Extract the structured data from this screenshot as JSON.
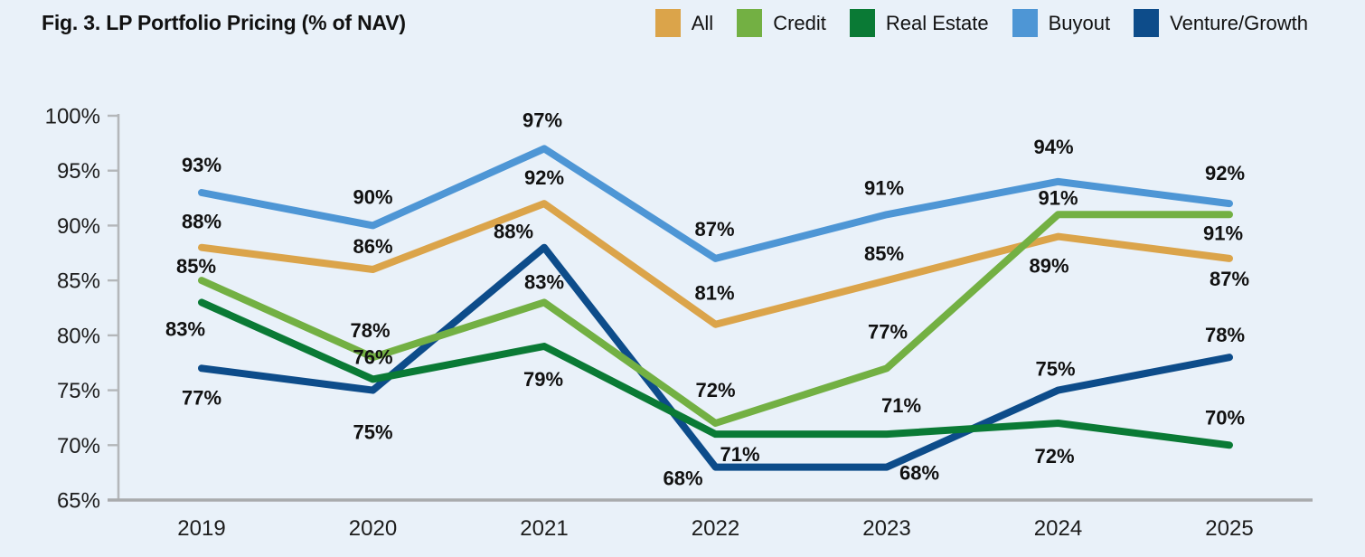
{
  "figure": {
    "title": "Fig. 3. LP Portfolio Pricing (% of NAV)"
  },
  "colors": {
    "background": "#e9f1f9",
    "axis_line": "#a9abad",
    "tick_line": "#b4b7ba",
    "axis_text": "#1c1c1c",
    "label_text": "#111111"
  },
  "chart_data": {
    "type": "line",
    "title": "Fig. 3. LP Portfolio Pricing (% of NAV)",
    "categories": [
      "2019",
      "2020",
      "2021",
      "2022",
      "2023",
      "2024",
      "2025"
    ],
    "xlabel": "",
    "ylabel": "",
    "ylim": [
      65,
      100
    ],
    "y_tick_step": 5,
    "y_ticks": [
      "100%",
      "95%",
      "90%",
      "85%",
      "80%",
      "75%",
      "70%",
      "65%"
    ],
    "grid": false,
    "legend_position": "top-right",
    "unit": "%",
    "series": [
      {
        "name": "All",
        "color": "#dba44a",
        "values": [
          88,
          86,
          92,
          81,
          85,
          89,
          87
        ],
        "label_offsets": [
          [
            0,
            -21
          ],
          [
            0,
            -18
          ],
          [
            0,
            -21
          ],
          [
            -1,
            -27
          ],
          [
            -3,
            -22
          ],
          [
            -10,
            40
          ],
          [
            0,
            30
          ]
        ]
      },
      {
        "name": "Credit",
        "color": "#73b043",
        "values": [
          85,
          78,
          83,
          72,
          77,
          91,
          91
        ],
        "label_offsets": [
          [
            -6,
            -8
          ],
          [
            -3,
            -22
          ],
          [
            0,
            -15
          ],
          [
            0,
            -29
          ],
          [
            1,
            -33
          ],
          [
            0,
            -11
          ],
          [
            -7,
            28
          ]
        ]
      },
      {
        "name": "Real Estate",
        "color": "#0a7a35",
        "values": [
          83,
          76,
          79,
          71,
          71,
          72,
          70
        ],
        "label_offsets": [
          [
            -18,
            37
          ],
          [
            0,
            -17
          ],
          [
            -1,
            44
          ],
          [
            27,
            30
          ],
          [
            16,
            -24
          ],
          [
            -4,
            44
          ],
          [
            -5,
            -23
          ]
        ]
      },
      {
        "name": "Buyout",
        "color": "#4e96d5",
        "values": [
          93,
          90,
          97,
          87,
          91,
          94,
          92
        ],
        "label_offsets": [
          [
            0,
            -23
          ],
          [
            0,
            -24
          ],
          [
            -2,
            -24
          ],
          [
            -1,
            -25
          ],
          [
            -3,
            -22
          ],
          [
            -5,
            -31
          ],
          [
            -5,
            -26
          ]
        ]
      },
      {
        "name": "Venture/Growth",
        "color": "#0d4c8a",
        "values": [
          77,
          75,
          88,
          68,
          68,
          75,
          78
        ],
        "label_offsets": [
          [
            0,
            40
          ],
          [
            0,
            54
          ],
          [
            -34,
            -10
          ],
          [
            -36,
            20
          ],
          [
            36,
            14
          ],
          [
            -3,
            -16
          ],
          [
            -5,
            -17
          ]
        ]
      }
    ]
  }
}
